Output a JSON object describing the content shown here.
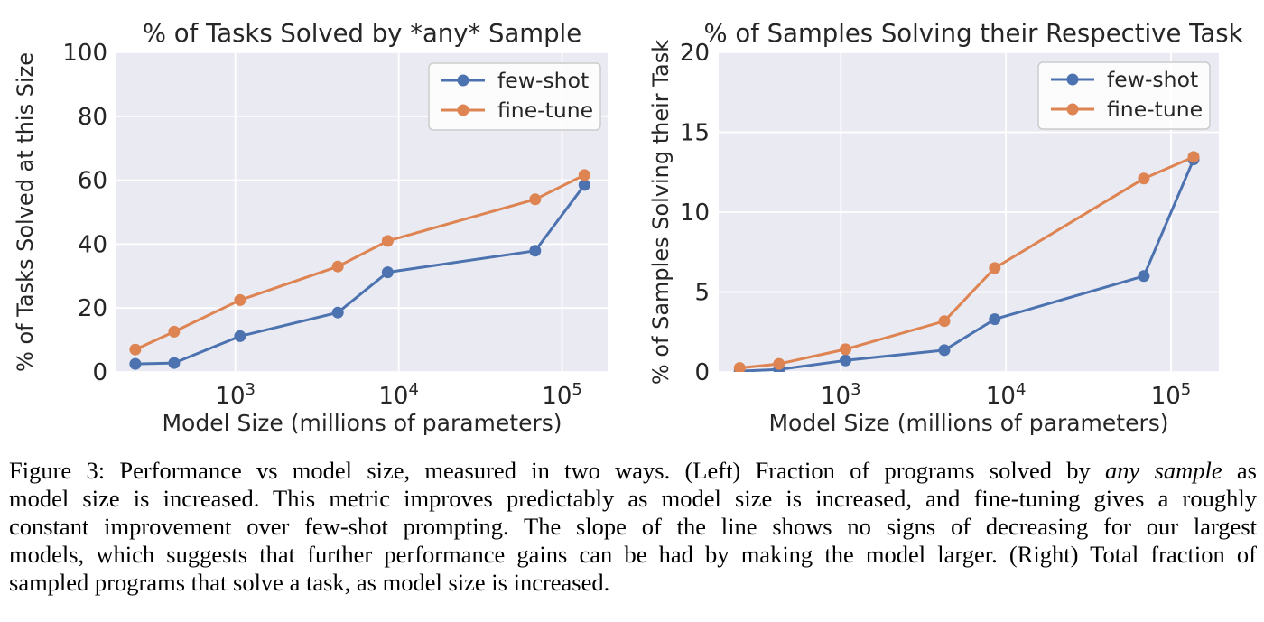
{
  "colors": {
    "few_shot": "#4C72B0",
    "fine_tune": "#DD8452",
    "plot_bg": "#EAEAF2",
    "grid": "#FFFFFF",
    "text": "#262626",
    "legend_border": "#CCCCCC",
    "legend_bg": "rgba(255,255,255,0.85)",
    "caption_text": "#000000"
  },
  "chart_data": [
    {
      "type": "line",
      "title": "% of Tasks Solved by *any* Sample",
      "xlabel": "Model Size (millions of parameters)",
      "ylabel": "% of Tasks Solved at this Size",
      "xscale": "log",
      "grid": true,
      "legend_position": "upper right",
      "x": [
        244,
        422,
        1068,
        4238,
        8558,
        68500,
        137000
      ],
      "xlim": [
        187,
        190000
      ],
      "ylim": [
        0,
        100
      ],
      "xticks": [
        1000,
        10000,
        100000
      ],
      "yticks": [
        0,
        20,
        40,
        60,
        80,
        100
      ],
      "series": [
        {
          "name": "few-shot",
          "color": "#4C72B0",
          "values": [
            2.5,
            2.8,
            11.2,
            18.6,
            31.2,
            37.9,
            58.5
          ]
        },
        {
          "name": "fine-tune",
          "color": "#DD8452",
          "values": [
            7.0,
            12.6,
            22.5,
            33.0,
            41.0,
            54.0,
            61.6
          ]
        }
      ]
    },
    {
      "type": "line",
      "title": "% of Samples Solving their Respective Task",
      "xlabel": "Model Size (millions of parameters)",
      "ylabel": "% of Samples Solving their Task",
      "xscale": "log",
      "grid": true,
      "legend_position": "upper right",
      "x": [
        244,
        422,
        1068,
        4238,
        8558,
        68500,
        137000
      ],
      "xlim": [
        182,
        195000
      ],
      "ylim": [
        0,
        20
      ],
      "xticks": [
        1000,
        10000,
        100000
      ],
      "yticks": [
        0,
        5,
        10,
        15,
        20
      ],
      "series": [
        {
          "name": "few-shot",
          "color": "#4C72B0",
          "values": [
            0.05,
            0.15,
            0.72,
            1.36,
            3.3,
            6.0,
            13.3
          ]
        },
        {
          "name": "fine-tune",
          "color": "#DD8452",
          "values": [
            0.25,
            0.5,
            1.42,
            3.18,
            6.5,
            12.1,
            13.45
          ]
        }
      ]
    }
  ],
  "figure": {
    "caption_lines": [
      {
        "justify": true,
        "runs": [
          {
            "text": "Figure 3: Performance vs model size, measured in two ways. (Left) Fraction of programs solved by "
          },
          {
            "text": "any sample",
            "italic": true
          },
          {
            "text": " as"
          }
        ]
      },
      {
        "justify": true,
        "runs": [
          {
            "text": "model size is increased. This metric improves predictably as model size is increased, and fine-tuning gives a roughly"
          }
        ]
      },
      {
        "justify": true,
        "runs": [
          {
            "text": "constant improvement over few-shot prompting. The slope of the line shows no signs of decreasing for our largest"
          }
        ]
      },
      {
        "justify": true,
        "runs": [
          {
            "text": "models, which suggests that further performance gains can be had by making the model larger. (Right) Total fraction of"
          }
        ]
      },
      {
        "justify": false,
        "runs": [
          {
            "text": "sampled programs that solve a task, as model size is increased."
          }
        ]
      }
    ]
  }
}
